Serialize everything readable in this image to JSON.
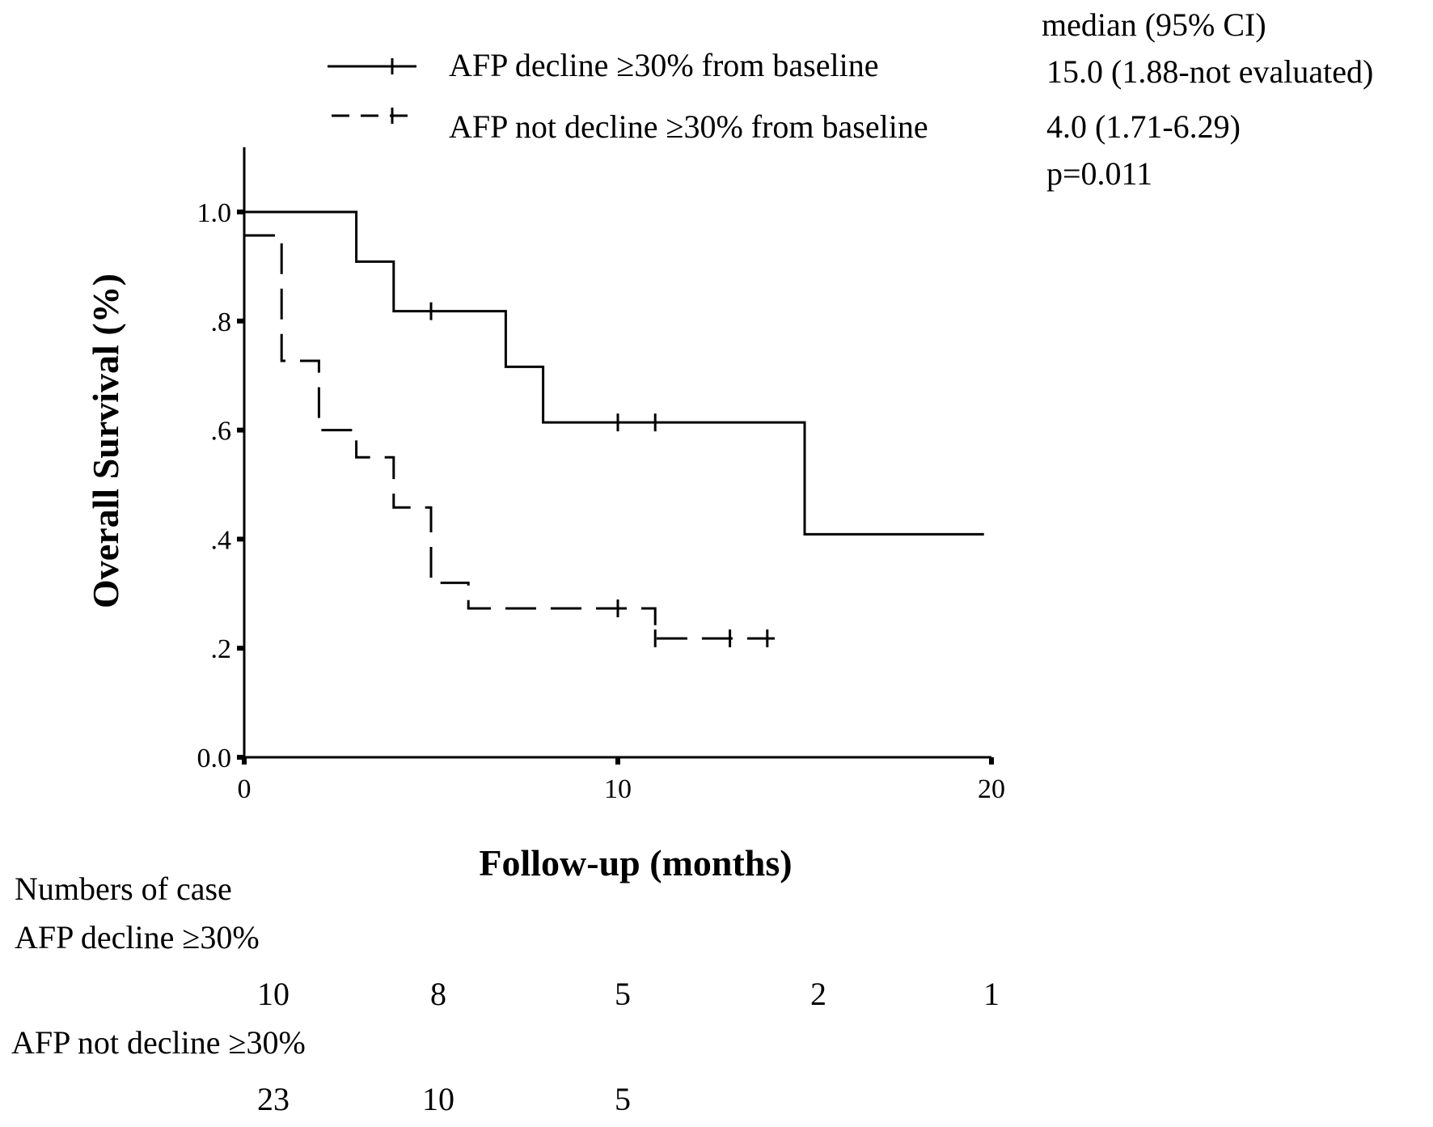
{
  "chart_data": {
    "type": "line",
    "title": "",
    "xlabel": "Follow-up (months)",
    "ylabel": "Overall Survival (%)",
    "xlim": [
      0,
      20
    ],
    "ylim": [
      0,
      1.0
    ],
    "x_ticks": [
      "0",
      "10",
      "20"
    ],
    "y_ticks": [
      "0.0",
      ".2",
      ".4",
      ".6",
      ".8",
      "1.0"
    ],
    "grid": false,
    "legend_position": "top",
    "series": [
      {
        "name": "AFP decline ≥30% from baseline",
        "style": "solid",
        "steps": [
          [
            0,
            1.0
          ],
          [
            3,
            0.909
          ],
          [
            4,
            0.818
          ],
          [
            7,
            0.716
          ],
          [
            8,
            0.614
          ],
          [
            15,
            0.409
          ],
          [
            19.8,
            0.409
          ]
        ],
        "censored": [
          [
            5,
            0.818
          ],
          [
            10,
            0.614
          ],
          [
            11,
            0.614
          ]
        ]
      },
      {
        "name": "AFP not decline ≥30% from baseline",
        "style": "dashed",
        "steps": [
          [
            0,
            0.957
          ],
          [
            1,
            0.727
          ],
          [
            2,
            0.6
          ],
          [
            3,
            0.55
          ],
          [
            4,
            0.458
          ],
          [
            5,
            0.32
          ],
          [
            6,
            0.273
          ],
          [
            11,
            0.218
          ],
          [
            14.2,
            0.218
          ]
        ],
        "censored": [
          [
            10,
            0.273
          ],
          [
            11,
            0.218
          ],
          [
            13,
            0.218
          ],
          [
            14,
            0.218
          ]
        ]
      }
    ]
  },
  "stats": {
    "header": "median (95% CI)",
    "decline_value": "15.0 (1.88-not evaluated)",
    "not_decline_value": "4.0  (1.71-6.29)",
    "p_value": "p=0.011"
  },
  "risk_table": {
    "title": "Numbers of case",
    "groups": [
      {
        "label": "AFP decline ≥30%",
        "counts": [
          "10",
          "8",
          "5",
          "2",
          "1"
        ]
      },
      {
        "label": "AFP not decline ≥30%",
        "counts": [
          "23",
          "10",
          "5"
        ]
      }
    ]
  }
}
